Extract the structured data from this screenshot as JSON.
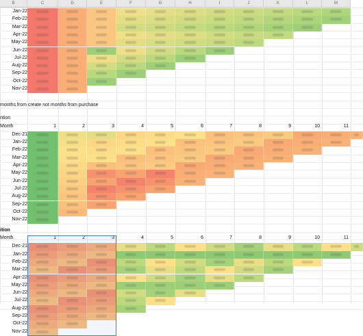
{
  "column_headers": [
    "B",
    "C",
    "D",
    "E",
    "F",
    "G",
    "H",
    "I",
    "J",
    "K",
    "L",
    "M"
  ],
  "note_text": "months from create not months from purchase",
  "section2": {
    "title": "ntion",
    "month_label": "Month",
    "col_numbers": [
      "1",
      "2",
      "3",
      "4",
      "5",
      "6",
      "7",
      "8",
      "9",
      "10",
      "11"
    ],
    "rows": [
      "Dec-21",
      "Jan-22",
      "Feb-22",
      "Mar-22",
      "Apr-22",
      "May-22",
      "Jun-22",
      "Jul-22",
      "Aug-22",
      "Sep-22",
      "Oct-22",
      "Nov-22"
    ]
  },
  "section3": {
    "title": "ition",
    "month_label": "Month",
    "col_numbers": [
      "1",
      "2",
      "3",
      "4",
      "5",
      "6",
      "7",
      "8",
      "9",
      "10",
      "11"
    ],
    "rows": [
      "Dec-21",
      "Jan-22",
      "Feb-22",
      "Mar-22",
      "Apr-22",
      "May-22",
      "Jun-22",
      "Jul-22",
      "Aug-22",
      "Sep-22",
      "Oct-22",
      "Nov-22"
    ]
  },
  "section1": {
    "rows": [
      "Jan-22",
      "Feb-22",
      "Mar-22",
      "Apr-22",
      "May-22",
      "Jun-22",
      "Jul-22",
      "Aug-22",
      "Sep-22",
      "Oct-22",
      "Nov-22"
    ]
  },
  "colors": {
    "red": "#f2706a",
    "orange": "#f8a46e",
    "yellow": "#fde388",
    "green": "#7cc372",
    "selection": "#3d7fd1"
  }
}
